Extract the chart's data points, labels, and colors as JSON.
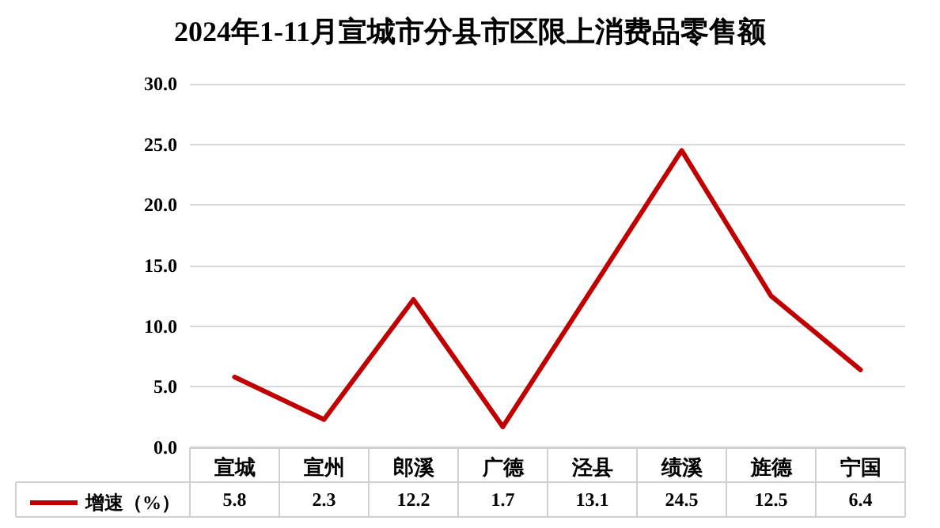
{
  "chart_data": {
    "type": "line",
    "title": "2024年1-11月宣城市分县市区限上消费品零售额",
    "categories": [
      "宣城",
      "宣州",
      "郎溪",
      "广德",
      "泾县",
      "绩溪",
      "旌德",
      "宁国"
    ],
    "series": [
      {
        "name": "增速（%）",
        "color": "#c00000",
        "values": [
          5.8,
          2.3,
          12.2,
          1.7,
          13.1,
          24.5,
          12.5,
          6.4
        ]
      }
    ],
    "ylim": [
      0,
      30
    ],
    "yticks": [
      {
        "value": 0,
        "label": "0.0"
      },
      {
        "value": 5,
        "label": "5.0"
      },
      {
        "value": 10,
        "label": "10.0"
      },
      {
        "value": 15,
        "label": "15.0"
      },
      {
        "value": 20,
        "label": "20.0"
      },
      {
        "value": 25,
        "label": "25.0"
      },
      {
        "value": 30,
        "label": "30.0"
      }
    ],
    "grid": "y",
    "legend": "bottom left",
    "marker": "none",
    "line_style": "solid",
    "data_labels": true
  }
}
